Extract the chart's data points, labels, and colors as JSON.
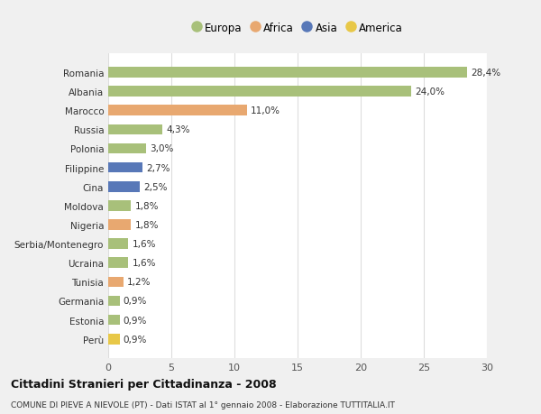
{
  "categories": [
    "Romania",
    "Albania",
    "Marocco",
    "Russia",
    "Polonia",
    "Filippine",
    "Cina",
    "Moldova",
    "Nigeria",
    "Serbia/Montenegro",
    "Ucraina",
    "Tunisia",
    "Germania",
    "Estonia",
    "Perù"
  ],
  "values": [
    28.4,
    24.0,
    11.0,
    4.3,
    3.0,
    2.7,
    2.5,
    1.8,
    1.8,
    1.6,
    1.6,
    1.2,
    0.9,
    0.9,
    0.9
  ],
  "labels": [
    "28,4%",
    "24,0%",
    "11,0%",
    "4,3%",
    "3,0%",
    "2,7%",
    "2,5%",
    "1,8%",
    "1,8%",
    "1,6%",
    "1,6%",
    "1,2%",
    "0,9%",
    "0,9%",
    "0,9%"
  ],
  "colors": [
    "#a8c07a",
    "#a8c07a",
    "#e8a870",
    "#a8c07a",
    "#a8c07a",
    "#5878b8",
    "#5878b8",
    "#a8c07a",
    "#e8a870",
    "#a8c07a",
    "#a8c07a",
    "#e8a870",
    "#a8c07a",
    "#a8c07a",
    "#e8c848"
  ],
  "legend_labels": [
    "Europa",
    "Africa",
    "Asia",
    "America"
  ],
  "legend_colors": [
    "#a8c07a",
    "#e8a870",
    "#5878b8",
    "#e8c848"
  ],
  "title": "Cittadini Stranieri per Cittadinanza - 2008",
  "subtitle": "COMUNE DI PIEVE A NIEVOLE (PT) - Dati ISTAT al 1° gennaio 2008 - Elaborazione TUTTITALIA.IT",
  "xlim": [
    0,
    30
  ],
  "xticks": [
    0,
    5,
    10,
    15,
    20,
    25,
    30
  ],
  "background_color": "#f0f0f0",
  "plot_background": "#ffffff",
  "grid_color": "#dddddd"
}
